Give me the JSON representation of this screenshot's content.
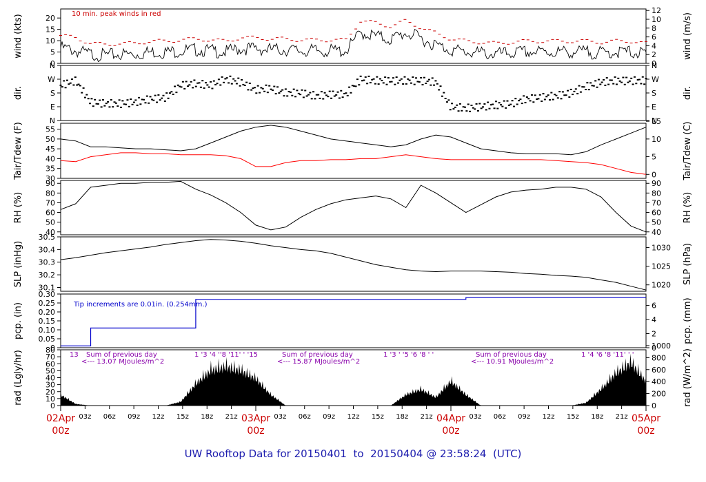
{
  "footer": {
    "prefix": "UW Rooftop Data for",
    "start": "20150401",
    "to": "to",
    "end": "20150404",
    "at": "@",
    "time": "23:58:24",
    "tz": "(UTC)"
  },
  "colors": {
    "axis": "#000000",
    "dewpoint": "#ff0000",
    "precip": "#0000cc",
    "annotation": "#8800aa",
    "date_label": "#cc0000",
    "peak_text": "#cc0000",
    "footer": "#1c1cae"
  },
  "chart_data": [
    {
      "type": "line",
      "panel": "wind",
      "ylabel": "wind (kts)",
      "ylabel_right": "wind (m/s)",
      "ylim": [
        0,
        24
      ],
      "yticks": [
        "0",
        "5",
        "10",
        "15",
        "20"
      ],
      "yticks_right": [
        "0",
        "2",
        "4",
        "6",
        "8",
        "10",
        "12"
      ],
      "annotation": "10 min. peak winds in red",
      "series": [
        {
          "values": [
            8.5,
            7,
            5.5,
            5,
            5.5,
            5.5,
            6.5,
            6.5,
            7,
            7.5,
            7,
            6.5,
            8,
            8,
            7.5,
            7.5,
            7,
            7,
            7,
            7,
            15,
            13.5,
            12,
            15,
            12.5,
            9.5,
            7.5,
            6.5,
            6,
            5.5,
            6,
            6.5,
            6.5,
            6.5,
            6.5,
            6.5,
            6,
            6.5,
            6.5,
            5.5
          ]
        },
        {
          "values": [
            11.5,
            10.5,
            8,
            7.5,
            8,
            8,
            9,
            9,
            9.5,
            10,
            9.5,
            9,
            10.5,
            10.5,
            10,
            10,
            9.5,
            9.5,
            9.5,
            9.5,
            18,
            17,
            15.5,
            18,
            15,
            12.5,
            10,
            9,
            8.5,
            8,
            8.5,
            9,
            9,
            9,
            9,
            9,
            8.5,
            9,
            9,
            8
          ]
        }
      ]
    },
    {
      "type": "scatter",
      "panel": "direction",
      "ylabel": "dir.",
      "ylabel_right": "dir.",
      "yticks": [
        "N",
        "E",
        "S",
        "W",
        "N"
      ],
      "ylim": [
        0,
        360
      ],
      "values": [
        230,
        260,
        120,
        110,
        110,
        120,
        140,
        150,
        230,
        240,
        230,
        270,
        250,
        200,
        210,
        180,
        180,
        160,
        170,
        170,
        270,
        260,
        260,
        260,
        260,
        250,
        90,
        80,
        90,
        100,
        110,
        140,
        150,
        160,
        180,
        220,
        250,
        260,
        260,
        260
      ]
    },
    {
      "type": "line",
      "panel": "temperature",
      "ylabel": "Tair/Tdew (F)",
      "ylabel_right": "Tair/Tdew (C)",
      "ylim": [
        30,
        58
      ],
      "yticks": [
        "30",
        "35",
        "40",
        "45",
        "50",
        "55"
      ],
      "yticks_right": [
        "0",
        "5",
        "10",
        "15"
      ],
      "series": [
        {
          "values": [
            50,
            49,
            46,
            46,
            45.5,
            45,
            45,
            44.5,
            44,
            45,
            48,
            51,
            54,
            56,
            57,
            56,
            54,
            52,
            50,
            49,
            48,
            47,
            46,
            47,
            50,
            52,
            51,
            48,
            45,
            44,
            43,
            42.5,
            42.5,
            42.5,
            42,
            43.5,
            47,
            50,
            53,
            56
          ]
        },
        {
          "values": [
            39,
            38.5,
            41,
            42,
            43,
            43,
            42.5,
            42.5,
            42,
            42,
            42,
            41.5,
            40,
            36,
            36,
            38,
            39,
            39,
            39.5,
            39.5,
            40,
            40,
            41,
            42,
            41,
            40,
            39.5,
            39.5,
            39.5,
            39.5,
            39.5,
            39.5,
            39.5,
            39,
            38.5,
            38,
            37,
            35,
            33,
            32
          ]
        }
      ]
    },
    {
      "type": "line",
      "panel": "humidity",
      "ylabel": "RH (%)",
      "ylabel_right": "RH (%)",
      "ylim": [
        37,
        93
      ],
      "yticks": [
        "40",
        "50",
        "60",
        "70",
        "80",
        "90"
      ],
      "yticks_right": [
        "40",
        "50",
        "60",
        "70",
        "80",
        "90"
      ],
      "values": [
        63,
        69,
        86,
        88,
        90,
        90,
        91,
        91,
        92,
        84,
        78,
        70,
        60,
        47,
        42,
        45,
        55,
        63,
        69,
        73,
        75,
        77,
        74,
        65,
        88,
        80,
        70,
        60,
        68,
        76,
        81,
        83,
        84,
        86,
        86,
        84,
        76,
        60,
        46,
        40
      ]
    },
    {
      "type": "line",
      "panel": "pressure",
      "ylabel": "SLP (inHg)",
      "ylabel_right": "SLP (hPa)",
      "ylim": [
        30.07,
        30.5
      ],
      "yticks": [
        "30.1",
        "30.2",
        "30.3",
        "30.4",
        "30.5"
      ],
      "yticks_right": [
        "1020",
        "1025",
        "1030"
      ],
      "values": [
        30.32,
        30.335,
        30.355,
        30.375,
        30.39,
        30.405,
        30.42,
        30.44,
        30.455,
        30.47,
        30.48,
        30.475,
        30.465,
        30.45,
        30.43,
        30.415,
        30.4,
        30.39,
        30.37,
        30.34,
        30.31,
        30.28,
        30.26,
        30.24,
        30.23,
        30.225,
        30.23,
        30.23,
        30.23,
        30.225,
        30.22,
        30.21,
        30.205,
        30.195,
        30.19,
        30.18,
        30.16,
        30.14,
        30.11,
        30.08
      ]
    },
    {
      "type": "line",
      "panel": "precipitation",
      "ylabel": "pcp. (in)",
      "ylabel_right": "pcp. (mm)",
      "ylim": [
        0,
        0.3
      ],
      "yticks": [
        "0",
        "0.05",
        "0.10",
        "0.15",
        "0.20",
        "0.25",
        "0.30"
      ],
      "yticks_right": [
        "0",
        "2",
        "4",
        "6"
      ],
      "annotation": "Tip increments are 0.01in. (0.254mm.)",
      "values": [
        0.01,
        0.01,
        0.11,
        0.11,
        0.11,
        0.11,
        0.11,
        0.11,
        0.11,
        0.27,
        0.27,
        0.27,
        0.27,
        0.27,
        0.27,
        0.27,
        0.27,
        0.27,
        0.27,
        0.27,
        0.27,
        0.27,
        0.27,
        0.27,
        0.27,
        0.27,
        0.27,
        0.28,
        0.28,
        0.28,
        0.28,
        0.28,
        0.28,
        0.28,
        0.28,
        0.28,
        0.28,
        0.28,
        0.28,
        0.28
      ]
    },
    {
      "type": "area",
      "panel": "radiation",
      "ylabel": "rad (Lgly/hr)",
      "ylabel_right": "rad (W/m^2)",
      "ylim": [
        0,
        80
      ],
      "yticks": [
        "0",
        "10",
        "20",
        "30",
        "40",
        "50",
        "60",
        "70",
        "80"
      ],
      "yticks_right": [
        "0",
        "200",
        "400",
        "600",
        "800",
        "1000"
      ],
      "values": [
        20,
        3,
        0,
        0,
        0,
        0,
        0,
        0,
        7,
        40,
        65,
        72,
        65,
        50,
        20,
        0,
        0,
        0,
        0,
        0,
        0,
        0,
        0,
        20,
        30,
        15,
        45,
        20,
        0,
        0,
        0,
        0,
        0,
        0,
        0,
        5,
        30,
        60,
        80,
        45
      ],
      "annotations": [
        {
          "label": "13"
        },
        {
          "label": "Sum of previous day"
        },
        {
          "label": "<--- 13.07 MJoules/m^2"
        },
        {
          "label": "1  '3  '4  ''8  '11'  '  '15"
        },
        {
          "label": "Sum of previous day"
        },
        {
          "label": "<--- 15.87 MJoules/m^2"
        },
        {
          "label": "1 '3  '    '5    '6  '8  '  '"
        },
        {
          "label": "Sum of previous day"
        },
        {
          "label": "<--- 10.91 MJoules/m^2"
        },
        {
          "label": "1   '4  '6  '8  '11'  '  '"
        }
      ]
    }
  ],
  "x_axis": {
    "hour_ticks": [
      "03z",
      "06z",
      "09z",
      "12z",
      "15z",
      "18z",
      "21z",
      "03z",
      "06z",
      "09z",
      "12z",
      "15z",
      "18z",
      "21z",
      "03z",
      "06z",
      "09z",
      "12z",
      "15z",
      "18z",
      "21z"
    ],
    "dates": [
      {
        "date": "02Apr",
        "time": "00z"
      },
      {
        "date": "03Apr",
        "time": "00z"
      },
      {
        "date": "04Apr",
        "time": "00z"
      },
      {
        "date": "05Apr",
        "time": "00z"
      }
    ]
  }
}
